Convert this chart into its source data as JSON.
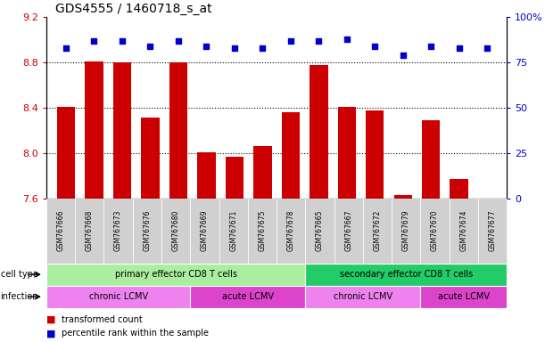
{
  "title": "GDS4555 / 1460718_s_at",
  "samples": [
    "GSM767666",
    "GSM767668",
    "GSM767673",
    "GSM767676",
    "GSM767680",
    "GSM767669",
    "GSM767671",
    "GSM767675",
    "GSM767678",
    "GSM767665",
    "GSM767667",
    "GSM767672",
    "GSM767679",
    "GSM767670",
    "GSM767674",
    "GSM767677"
  ],
  "bar_values": [
    8.41,
    8.81,
    8.8,
    8.31,
    8.8,
    8.01,
    7.97,
    8.06,
    8.36,
    8.78,
    8.41,
    8.38,
    7.63,
    8.29,
    7.77,
    7.6
  ],
  "dot_values": [
    83,
    87,
    87,
    84,
    87,
    84,
    83,
    83,
    87,
    87,
    88,
    84,
    79,
    84,
    83,
    83
  ],
  "bar_color": "#cc0000",
  "dot_color": "#0000cc",
  "ylim_left": [
    7.6,
    9.2
  ],
  "ylim_right": [
    0,
    100
  ],
  "yticks_left": [
    7.6,
    8.0,
    8.4,
    8.8,
    9.2
  ],
  "yticks_right": [
    0,
    25,
    50,
    75,
    100
  ],
  "grid_values": [
    8.0,
    8.4,
    8.8
  ],
  "cell_type_groups": [
    {
      "label": "primary effector CD8 T cells",
      "start": 0,
      "end": 9,
      "color": "#aaeea0"
    },
    {
      "label": "secondary effector CD8 T cells",
      "start": 9,
      "end": 16,
      "color": "#22cc66"
    }
  ],
  "infection_groups": [
    {
      "label": "chronic LCMV",
      "start": 0,
      "end": 5,
      "color": "#ee82ee"
    },
    {
      "label": "acute LCMV",
      "start": 5,
      "end": 9,
      "color": "#dd44cc"
    },
    {
      "label": "chronic LCMV",
      "start": 9,
      "end": 13,
      "color": "#ee82ee"
    },
    {
      "label": "acute LCMV",
      "start": 13,
      "end": 16,
      "color": "#dd44cc"
    }
  ],
  "legend_items": [
    {
      "label": "transformed count",
      "color": "#cc0000"
    },
    {
      "label": "percentile rank within the sample",
      "color": "#0000cc"
    }
  ],
  "bar_width": 0.65,
  "background_color": "#ffffff",
  "bar_bottom": 7.6
}
